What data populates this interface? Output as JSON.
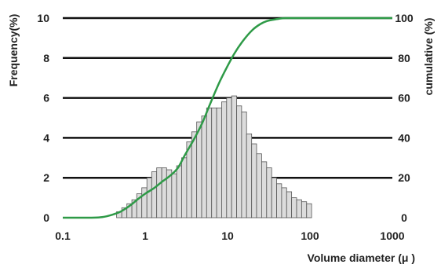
{
  "chart_data": {
    "type": "bar",
    "xlabel": "Volume diameter (μ )",
    "ylabel_left": "Frequency(%)",
    "ylabel_right": "cumulative (%)",
    "x_scale": "log",
    "xlim": [
      0.1,
      1000
    ],
    "ylim_left": [
      0,
      10
    ],
    "ylim_right": [
      0,
      100
    ],
    "x_ticks": [
      {
        "value": 0.1,
        "label": "0.1"
      },
      {
        "value": 1,
        "label": "1"
      },
      {
        "value": 10,
        "label": "10"
      },
      {
        "value": 100,
        "label": "100"
      },
      {
        "value": 1000,
        "label": "1000"
      }
    ],
    "y_ticks_left": [
      "0",
      "2",
      "4",
      "6",
      "8",
      "10"
    ],
    "y_ticks_right": [
      "0",
      "20",
      "40",
      "60",
      "80",
      "100"
    ],
    "grid": "horizontal",
    "bars": {
      "name": "Frequency",
      "bin_edges": [
        0.45,
        0.52,
        0.6,
        0.69,
        0.79,
        0.91,
        1.05,
        1.2,
        1.38,
        1.59,
        1.82,
        2.1,
        2.41,
        2.77,
        3.19,
        3.67,
        4.22,
        4.85,
        5.57,
        6.41,
        7.37,
        8.47,
        9.74,
        11.2,
        12.9,
        14.8,
        17.0,
        19.6,
        22.5,
        25.9,
        29.8,
        34.3,
        39.4,
        45.3,
        52.1,
        59.9,
        68.9,
        79.2,
        91.1,
        104.7
      ],
      "values": [
        0.3,
        0.5,
        0.7,
        0.9,
        1.2,
        1.5,
        2.0,
        2.3,
        2.5,
        2.5,
        2.4,
        2.2,
        2.6,
        3.0,
        3.8,
        4.3,
        4.8,
        5.1,
        5.5,
        5.5,
        5.5,
        5.8,
        6.0,
        6.1,
        5.6,
        5.3,
        4.2,
        3.7,
        3.2,
        2.8,
        2.5,
        2.0,
        1.7,
        1.5,
        1.3,
        1.0,
        0.9,
        0.8,
        0.7
      ]
    },
    "cumulative": {
      "name": "cumulative",
      "x": [
        0.1,
        0.2,
        0.3,
        0.4,
        0.5,
        0.6,
        0.7,
        0.8,
        1.0,
        1.3,
        1.6,
        2.0,
        2.5,
        3.0,
        4.0,
        5.0,
        6.0,
        8.0,
        10.0,
        12.0,
        15.0,
        20.0,
        25.0,
        30.0,
        40.0,
        50.0,
        60.0,
        80.0,
        100.0,
        200.0,
        1000.0
      ],
      "y": [
        0,
        0,
        0.3,
        1.5,
        3,
        5,
        7,
        9,
        12,
        15,
        18,
        21,
        25,
        31,
        40,
        48,
        56,
        68,
        76,
        82,
        88,
        94,
        97,
        98.5,
        99.5,
        100,
        100,
        100,
        100,
        100,
        100
      ]
    }
  }
}
